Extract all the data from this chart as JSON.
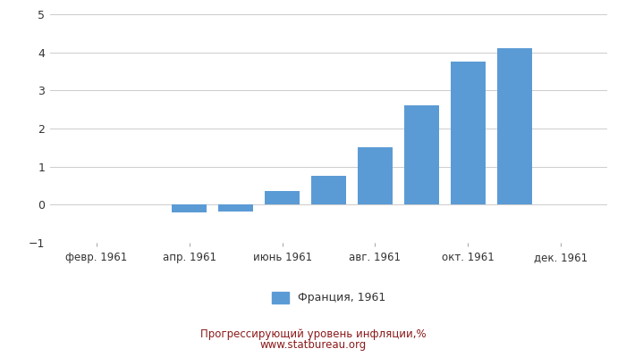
{
  "bar_positions": [
    3,
    4,
    5,
    6,
    7,
    8,
    9,
    10
  ],
  "bar_values": [
    -0.2,
    -0.18,
    0.37,
    0.75,
    1.5,
    2.6,
    3.75,
    4.1
  ],
  "bar_color": "#5b9bd5",
  "x_tick_positions": [
    1,
    3,
    5,
    7,
    9,
    11
  ],
  "x_tick_labels": [
    "февр. 1961",
    "апр. 1961",
    "июнь 1961",
    "авг. 1961",
    "окт. 1961",
    "дек. 1961"
  ],
  "ylim": [
    -1.0,
    5.0
  ],
  "yticks": [
    -1,
    0,
    1,
    2,
    3,
    4,
    5
  ],
  "xlim": [
    0,
    12
  ],
  "legend_label": "Франция, 1961",
  "footer_line1": "Прогрессирующий уровень инфляции,%",
  "footer_line2": "www.statbureau.org",
  "background_color": "#ffffff",
  "grid_color": "#cccccc",
  "footer_color": "#8b1a1a",
  "text_color": "#333333"
}
